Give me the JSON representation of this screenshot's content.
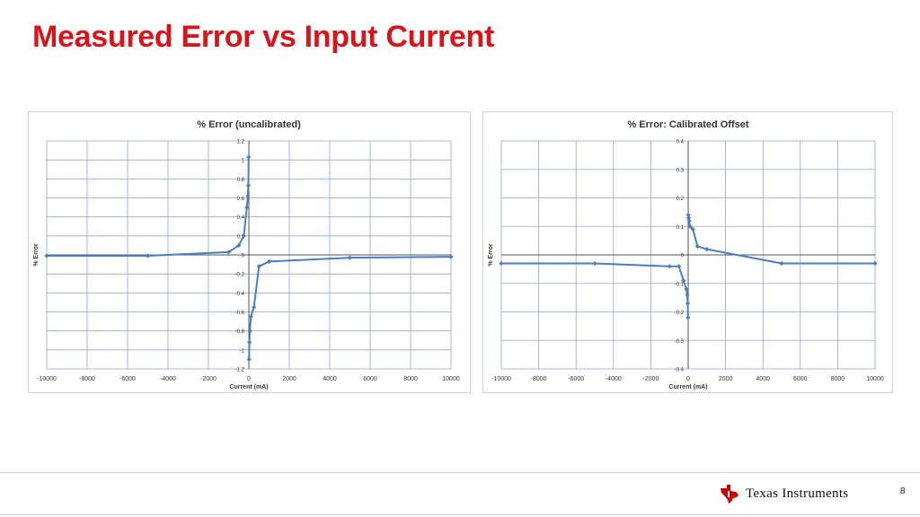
{
  "slide": {
    "title": "Measured Error vs Input Current",
    "page_number": "8",
    "logo_text": "Texas Instruments"
  },
  "colors": {
    "title": "#d9141b",
    "series": "#4a7fbf",
    "grid": "#8fa8cc",
    "logo_red": "#cc0000"
  },
  "chart_data": [
    {
      "type": "scatter",
      "title": "% Error (uncalibrated)",
      "xlabel": "Current (mA)",
      "ylabel": "% Error",
      "xlim": [
        -10000,
        10000
      ],
      "ylim": [
        -1.2,
        1.2
      ],
      "xticks": [
        -10000,
        -8000,
        -6000,
        -4000,
        -2000,
        0,
        2000,
        4000,
        6000,
        8000,
        10000
      ],
      "yticks": [
        -1.2,
        -1,
        -0.8,
        -0.6,
        -0.4,
        -0.2,
        0,
        0.2,
        0.4,
        0.6,
        0.8,
        1,
        1.2
      ],
      "xtick_labels": [
        "-10000",
        "-8000",
        "-6000",
        "-4000",
        "-2000",
        "0",
        "2000",
        "4000",
        "6000",
        "8000",
        "10000"
      ],
      "ytick_labels": [
        "-1.2",
        "-1",
        "-0.8",
        "-0.6",
        "-0.4",
        "-0.2",
        "0",
        "0.2",
        "0.4",
        "0.6",
        "0.8",
        "1",
        "1.2"
      ],
      "grid": true,
      "legend": "none",
      "series": [
        {
          "name": "",
          "x": [
            -10000,
            -5000,
            -1000,
            -500,
            -250,
            -100,
            -50,
            -25,
            -10,
            10,
            25,
            50,
            100,
            250,
            500,
            1000,
            5000,
            10000
          ],
          "y": [
            -0.01,
            -0.01,
            0.03,
            0.1,
            0.2,
            0.5,
            0.62,
            0.73,
            1.03,
            -1.1,
            -0.92,
            -0.8,
            -0.65,
            -0.55,
            -0.12,
            -0.07,
            -0.03,
            -0.02
          ]
        }
      ]
    },
    {
      "type": "scatter",
      "title": "% Error: Calibrated Offset",
      "xlabel": "Current (mA)",
      "ylabel": "% Error",
      "xlim": [
        -10000,
        10000
      ],
      "ylim": [
        -0.4,
        0.4
      ],
      "xticks": [
        -10000,
        -8000,
        -6000,
        -4000,
        -2000,
        0,
        2000,
        4000,
        6000,
        8000,
        10000
      ],
      "yticks": [
        -0.4,
        -0.3,
        -0.2,
        -0.1,
        0,
        0.1,
        0.2,
        0.3,
        0.4
      ],
      "xtick_labels": [
        "-10000",
        "-8000",
        "-6000",
        "-4000",
        "-2000",
        "0",
        "2000",
        "4000",
        "6000",
        "8000",
        "10000"
      ],
      "ytick_labels": [
        "-0.4",
        "-0.3",
        "-0.2",
        "-0.1",
        "0",
        "0.1",
        "0.2",
        "0.3",
        "0.4"
      ],
      "grid": true,
      "legend": "none",
      "series": [
        {
          "name": "",
          "x": [
            -10000,
            -5000,
            -1000,
            -500,
            -250,
            -100,
            -50,
            -25,
            -10,
            10,
            25,
            50,
            100,
            250,
            500,
            1000,
            5000,
            10000
          ],
          "y": [
            -0.03,
            -0.03,
            -0.04,
            -0.04,
            -0.09,
            -0.12,
            -0.14,
            -0.17,
            -0.22,
            0.14,
            0.13,
            0.12,
            0.1,
            0.09,
            0.03,
            0.02,
            -0.03,
            -0.03
          ]
        }
      ]
    }
  ]
}
